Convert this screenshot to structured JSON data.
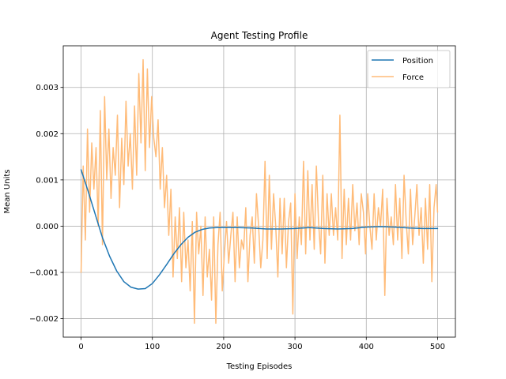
{
  "chart_data": {
    "type": "line",
    "title": "Agent Testing Profile",
    "xlabel": "Testing Episodes",
    "ylabel": "Mean Units",
    "xlim": [
      -25,
      525
    ],
    "ylim": [
      -0.0024,
      0.0039
    ],
    "xticks": [
      0,
      100,
      200,
      300,
      400,
      500
    ],
    "xtick_labels": [
      "0",
      "100",
      "200",
      "300",
      "400",
      "500"
    ],
    "yticks": [
      -0.002,
      -0.001,
      0.0,
      0.001,
      0.002,
      0.003
    ],
    "ytick_labels": [
      "−0.002",
      "−0.001",
      "0.000",
      "0.001",
      "0.002",
      "0.003"
    ],
    "grid": true,
    "legend": "top-right",
    "series": [
      {
        "name": "Position",
        "color": "#1f77b4",
        "x": [
          0,
          10,
          20,
          30,
          40,
          50,
          60,
          70,
          80,
          90,
          100,
          110,
          120,
          130,
          140,
          150,
          160,
          170,
          180,
          190,
          200,
          220,
          240,
          260,
          280,
          300,
          320,
          340,
          360,
          380,
          400,
          420,
          440,
          460,
          480,
          500
        ],
        "values": [
          0.00122,
          0.00075,
          0.00025,
          -0.00025,
          -0.00065,
          -0.00097,
          -0.0012,
          -0.00132,
          -0.00136,
          -0.00135,
          -0.00124,
          -0.00105,
          -0.00083,
          -0.0006,
          -0.0004,
          -0.00024,
          -0.00013,
          -7e-05,
          -4e-05,
          -3e-05,
          -3e-05,
          -3e-05,
          -4e-05,
          -6e-05,
          -6e-05,
          -5e-05,
          -3e-05,
          -5e-05,
          -6e-05,
          -5e-05,
          -2e-05,
          -1e-05,
          -2e-05,
          -4e-05,
          -5e-05,
          -5e-05
        ]
      },
      {
        "name": "Force",
        "color": "#ffbb78",
        "x": [
          0,
          3,
          6,
          9,
          12,
          15,
          18,
          21,
          24,
          27,
          30,
          33,
          36,
          39,
          42,
          45,
          48,
          51,
          54,
          57,
          60,
          63,
          66,
          69,
          72,
          75,
          78,
          81,
          84,
          87,
          90,
          93,
          96,
          99,
          102,
          105,
          108,
          111,
          114,
          117,
          120,
          123,
          126,
          129,
          132,
          135,
          138,
          141,
          144,
          147,
          150,
          153,
          156,
          159,
          162,
          165,
          168,
          171,
          174,
          177,
          180,
          183,
          186,
          189,
          192,
          195,
          198,
          201,
          204,
          207,
          210,
          213,
          216,
          219,
          222,
          225,
          228,
          231,
          234,
          237,
          240,
          243,
          246,
          249,
          252,
          255,
          258,
          261,
          264,
          267,
          270,
          273,
          276,
          279,
          282,
          285,
          288,
          291,
          294,
          297,
          300,
          303,
          306,
          309,
          312,
          315,
          318,
          321,
          324,
          327,
          330,
          333,
          336,
          339,
          342,
          345,
          348,
          351,
          354,
          357,
          360,
          363,
          366,
          369,
          372,
          375,
          378,
          381,
          384,
          387,
          390,
          393,
          396,
          399,
          402,
          405,
          408,
          411,
          414,
          417,
          420,
          423,
          426,
          429,
          432,
          435,
          438,
          441,
          444,
          447,
          450,
          453,
          456,
          459,
          462,
          465,
          468,
          471,
          474,
          477,
          480,
          483,
          486,
          489,
          492,
          495,
          498,
          500
        ],
        "values": [
          -0.001,
          0.0013,
          -0.0003,
          0.0021,
          0.0003,
          0.0018,
          0.0008,
          0.0017,
          0.0,
          0.0025,
          -0.0004,
          0.0028,
          0.001,
          0.0021,
          0.0006,
          0.0017,
          0.0011,
          0.0024,
          0.0004,
          0.0019,
          0.0009,
          0.0027,
          0.0013,
          0.002,
          0.0008,
          0.0026,
          0.0011,
          0.0033,
          0.0018,
          0.0036,
          0.0012,
          0.0034,
          0.0017,
          0.0028,
          0.0019,
          0.0015,
          0.0023,
          0.0008,
          0.0017,
          0.0004,
          0.0011,
          -0.0002,
          0.0008,
          -0.0011,
          0.0002,
          -0.0007,
          0.0004,
          -0.0012,
          0.0003,
          -0.0009,
          -0.0003,
          -0.0014,
          0.0001,
          -0.0021,
          0.0003,
          -0.0006,
          0.0,
          -0.0015,
          0.0002,
          -0.0011,
          -0.0005,
          -0.0016,
          0.0002,
          -0.0021,
          -0.0004,
          0.0003,
          -0.0014,
          -0.0006,
          0.0001,
          -0.0008,
          -0.0002,
          0.0003,
          -0.0012,
          0.0002,
          -0.0009,
          -0.0003,
          -0.0005,
          0.0004,
          -0.0012,
          -0.0002,
          0.0002,
          -0.0008,
          0.0007,
          0.0,
          -0.0009,
          -0.0003,
          0.0014,
          -0.0007,
          0.0011,
          -0.0005,
          0.0007,
          0.0,
          -0.0011,
          0.0006,
          -0.0006,
          0.0006,
          -0.0009,
          0.0001,
          0.0005,
          -0.0019,
          0.0007,
          -0.0007,
          0.0002,
          -0.0004,
          0.0014,
          -0.0006,
          0.0012,
          -0.0003,
          0.0009,
          -0.0005,
          0.0013,
          0.0001,
          -0.0006,
          0.0011,
          -0.0008,
          0.0007,
          -0.0002,
          0.0007,
          -0.0002,
          0.0004,
          -0.0003,
          0.0024,
          -0.0007,
          0.0008,
          -0.0004,
          0.0006,
          -0.0003,
          0.0009,
          -0.0001,
          0.0005,
          -0.0004,
          0.0007,
          0.0003,
          -0.0006,
          0.0007,
          0.0,
          -0.0005,
          0.0007,
          -0.0003,
          0.0004,
          0.0,
          0.0008,
          -0.0015,
          0.0006,
          -0.0002,
          0.0002,
          -0.0004,
          0.0009,
          -0.0003,
          0.0006,
          -0.0007,
          0.0011,
          0.0001,
          -0.0006,
          0.0008,
          -0.0004,
          0.0002,
          0.0009,
          -0.0002,
          0.0004,
          -0.0008,
          0.0006,
          -0.0005,
          0.0009,
          -0.0012,
          0.0004,
          0.0009,
          0.0003
        ]
      }
    ]
  }
}
